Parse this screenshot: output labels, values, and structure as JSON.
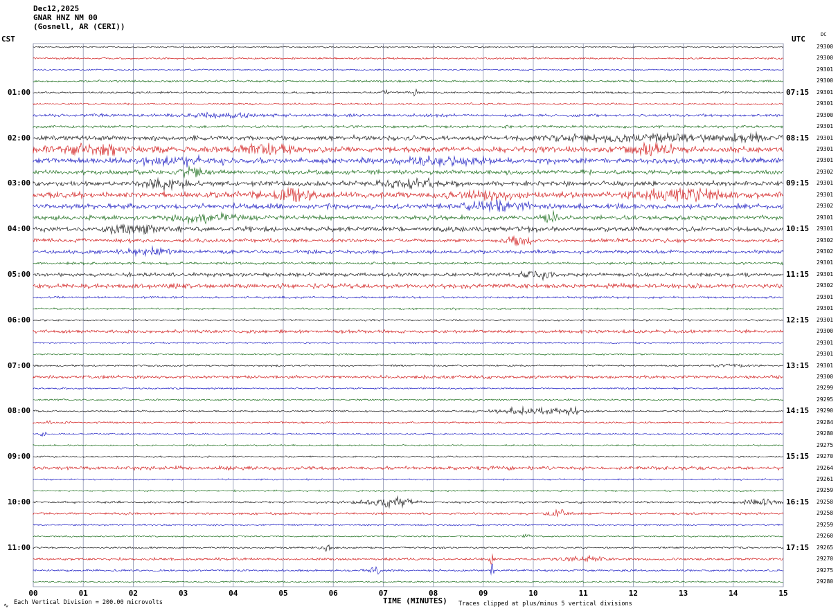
{
  "header": {
    "date": "Dec12,2025",
    "station": "GNAR HNZ NM 00",
    "location": "(Gosnell, AR (CERI))"
  },
  "axes": {
    "left_label": "CST",
    "right_label": "UTC",
    "dc_label": "DC",
    "x_label": "TIME (MINUTES)"
  },
  "footer": {
    "scale_note": "Each Vertical Division =  200.00 microvolts",
    "clip_note": "Traces clipped at plus/minus 5 vertical divisions",
    "corner_mark": "∿"
  },
  "colors": {
    "traces": [
      "#000000",
      "#cc0000",
      "#0000bb",
      "#005c00"
    ],
    "grid": "#8d93af",
    "background": "#ffffff"
  },
  "chart_data": {
    "type": "line",
    "title": "GNAR HNZ NM 00 (Gosnell, AR (CERI)) helicorder Dec12,2025",
    "xlabel": "TIME (MINUTES)",
    "x_ticks": [
      "00",
      "01",
      "02",
      "03",
      "04",
      "05",
      "06",
      "07",
      "08",
      "09",
      "10",
      "11",
      "12",
      "13",
      "14",
      "15"
    ],
    "x_range_minutes": [
      0,
      15
    ],
    "minutes_per_row": 15,
    "left_time_zone": "CST",
    "right_time_zone": "UTC",
    "trace_color_cycle": [
      "black",
      "red",
      "blue",
      "green"
    ],
    "rows": [
      {
        "cst": "",
        "utc": "",
        "dc": "29300",
        "c": 0,
        "a": 0.8,
        "ev": []
      },
      {
        "cst": "",
        "utc": "",
        "dc": "29300",
        "c": 1,
        "a": 1.0,
        "ev": []
      },
      {
        "cst": "",
        "utc": "",
        "dc": "29301",
        "c": 2,
        "a": 0.8,
        "ev": []
      },
      {
        "cst": "",
        "utc": "",
        "dc": "29300",
        "c": 3,
        "a": 1.2,
        "ev": []
      },
      {
        "cst": "01:00",
        "utc": "07:15",
        "dc": "29301",
        "c": 0,
        "a": 1.1,
        "ev": [
          {
            "p": 0.51,
            "m": 5,
            "w": 0.003
          },
          {
            "p": 0.47,
            "m": 2,
            "w": 0.004
          }
        ]
      },
      {
        "cst": "",
        "utc": "",
        "dc": "29301",
        "c": 1,
        "a": 1.0,
        "ev": []
      },
      {
        "cst": "",
        "utc": "",
        "dc": "29300",
        "c": 2,
        "a": 1.6,
        "ev": [
          {
            "p": 0.25,
            "m": 1.5,
            "w": 0.05
          }
        ]
      },
      {
        "cst": "",
        "utc": "",
        "dc": "29301",
        "c": 3,
        "a": 1.5,
        "ev": []
      },
      {
        "cst": "02:00",
        "utc": "08:15",
        "dc": "29301",
        "c": 0,
        "a": 2.6,
        "ev": [
          {
            "p": 0.8,
            "m": 1.2,
            "w": 0.1
          },
          {
            "p": 0.95,
            "m": 1.5,
            "w": 0.04
          }
        ]
      },
      {
        "cst": "",
        "utc": "",
        "dc": "29301",
        "c": 1,
        "a": 3.2,
        "ev": [
          {
            "p": 0.07,
            "m": 1.5,
            "w": 0.05
          },
          {
            "p": 0.3,
            "m": 1.2,
            "w": 0.04
          },
          {
            "p": 0.82,
            "m": 1.6,
            "w": 0.03
          }
        ]
      },
      {
        "cst": "",
        "utc": "",
        "dc": "29301",
        "c": 2,
        "a": 3.0,
        "ev": [
          {
            "p": 0.2,
            "m": 1.2,
            "w": 0.05
          },
          {
            "p": 0.55,
            "m": 1.3,
            "w": 0.05
          }
        ]
      },
      {
        "cst": "",
        "utc": "",
        "dc": "29302",
        "c": 3,
        "a": 2.4,
        "ev": [
          {
            "p": 0.21,
            "m": 1.8,
            "w": 0.02
          }
        ]
      },
      {
        "cst": "03:00",
        "utc": "09:15",
        "dc": "29301",
        "c": 0,
        "a": 2.6,
        "ev": [
          {
            "p": 0.5,
            "m": 1.6,
            "w": 0.04
          },
          {
            "p": 0.18,
            "m": 1.4,
            "w": 0.03
          }
        ]
      },
      {
        "cst": "",
        "utc": "",
        "dc": "29301",
        "c": 1,
        "a": 3.2,
        "ev": [
          {
            "p": 0.34,
            "m": 2,
            "w": 0.03
          },
          {
            "p": 0.86,
            "m": 1.8,
            "w": 0.05
          },
          {
            "p": 0.6,
            "m": 1.3,
            "w": 0.04
          }
        ]
      },
      {
        "cst": "",
        "utc": "",
        "dc": "29302",
        "c": 2,
        "a": 2.8,
        "ev": [
          {
            "p": 0.62,
            "m": 1.6,
            "w": 0.04
          }
        ]
      },
      {
        "cst": "",
        "utc": "",
        "dc": "29301",
        "c": 3,
        "a": 2.4,
        "ev": [
          {
            "p": 0.23,
            "m": 1.6,
            "w": 0.04
          },
          {
            "p": 0.69,
            "m": 2.2,
            "w": 0.01
          }
        ]
      },
      {
        "cst": "04:00",
        "utc": "10:15",
        "dc": "29301",
        "c": 0,
        "a": 2.6,
        "ev": [
          {
            "p": 0.13,
            "m": 1.6,
            "w": 0.03
          }
        ]
      },
      {
        "cst": "",
        "utc": "",
        "dc": "29302",
        "c": 1,
        "a": 2.0,
        "ev": [
          {
            "p": 0.65,
            "m": 2.2,
            "w": 0.015
          }
        ]
      },
      {
        "cst": "",
        "utc": "",
        "dc": "29302",
        "c": 2,
        "a": 2.0,
        "ev": [
          {
            "p": 0.15,
            "m": 1.6,
            "w": 0.03
          }
        ]
      },
      {
        "cst": "",
        "utc": "",
        "dc": "29301",
        "c": 3,
        "a": 1.4,
        "ev": []
      },
      {
        "cst": "05:00",
        "utc": "11:15",
        "dc": "29301",
        "c": 0,
        "a": 2.0,
        "ev": [
          {
            "p": 0.67,
            "m": 2,
            "w": 0.02
          }
        ]
      },
      {
        "cst": "",
        "utc": "",
        "dc": "29302",
        "c": 1,
        "a": 2.6,
        "ev": []
      },
      {
        "cst": "",
        "utc": "",
        "dc": "29301",
        "c": 2,
        "a": 1.2,
        "ev": []
      },
      {
        "cst": "",
        "utc": "",
        "dc": "29301",
        "c": 3,
        "a": 1.0,
        "ev": [
          {
            "p": 0.56,
            "m": 4,
            "w": 0.0025
          }
        ]
      },
      {
        "cst": "06:00",
        "utc": "12:15",
        "dc": "29301",
        "c": 0,
        "a": 1.0,
        "ev": []
      },
      {
        "cst": "",
        "utc": "",
        "dc": "29300",
        "c": 1,
        "a": 1.8,
        "ev": []
      },
      {
        "cst": "",
        "utc": "",
        "dc": "29301",
        "c": 2,
        "a": 0.9,
        "ev": []
      },
      {
        "cst": "",
        "utc": "",
        "dc": "29301",
        "c": 3,
        "a": 0.9,
        "ev": []
      },
      {
        "cst": "07:00",
        "utc": "13:15",
        "dc": "29301",
        "c": 0,
        "a": 1.0,
        "ev": [
          {
            "p": 0.93,
            "m": 2,
            "w": 0.02
          }
        ]
      },
      {
        "cst": "",
        "utc": "",
        "dc": "29300",
        "c": 1,
        "a": 1.8,
        "ev": []
      },
      {
        "cst": "",
        "utc": "",
        "dc": "29299",
        "c": 2,
        "a": 0.9,
        "ev": []
      },
      {
        "cst": "",
        "utc": "",
        "dc": "29295",
        "c": 3,
        "a": 0.9,
        "ev": []
      },
      {
        "cst": "08:00",
        "utc": "14:15",
        "dc": "29290",
        "c": 0,
        "a": 1.0,
        "ev": [
          {
            "p": 0.667,
            "m": 4,
            "w": 0.05
          },
          {
            "p": 0.72,
            "m": 5,
            "w": 0.006
          }
        ]
      },
      {
        "cst": "",
        "utc": "",
        "dc": "29284",
        "c": 1,
        "a": 1.0,
        "ev": [
          {
            "p": 0.02,
            "m": 3,
            "w": 0.004
          }
        ]
      },
      {
        "cst": "",
        "utc": "",
        "dc": "29280",
        "c": 2,
        "a": 0.9,
        "ev": [
          {
            "p": 0.012,
            "m": 3,
            "w": 0.004
          }
        ]
      },
      {
        "cst": "",
        "utc": "",
        "dc": "29275",
        "c": 3,
        "a": 0.9,
        "ev": []
      },
      {
        "cst": "09:00",
        "utc": "15:15",
        "dc": "29270",
        "c": 0,
        "a": 0.9,
        "ev": []
      },
      {
        "cst": "",
        "utc": "",
        "dc": "29264",
        "c": 1,
        "a": 2.0,
        "ev": []
      },
      {
        "cst": "",
        "utc": "",
        "dc": "29261",
        "c": 2,
        "a": 0.9,
        "ev": []
      },
      {
        "cst": "",
        "utc": "",
        "dc": "29259",
        "c": 3,
        "a": 0.9,
        "ev": []
      },
      {
        "cst": "10:00",
        "utc": "16:15",
        "dc": "29258",
        "c": 0,
        "a": 1.2,
        "ev": [
          {
            "p": 0.473,
            "m": 3.5,
            "w": 0.035
          },
          {
            "p": 0.97,
            "m": 3,
            "w": 0.025
          }
        ]
      },
      {
        "cst": "",
        "utc": "",
        "dc": "29258",
        "c": 1,
        "a": 1.2,
        "ev": [
          {
            "p": 0.7,
            "m": 4,
            "w": 0.015
          }
        ]
      },
      {
        "cst": "",
        "utc": "",
        "dc": "29259",
        "c": 2,
        "a": 0.9,
        "ev": []
      },
      {
        "cst": "",
        "utc": "",
        "dc": "29260",
        "c": 3,
        "a": 0.9,
        "ev": [
          {
            "p": 0.657,
            "m": 3,
            "w": 0.004
          }
        ]
      },
      {
        "cst": "11:00",
        "utc": "17:15",
        "dc": "29265",
        "c": 0,
        "a": 1.0,
        "ev": [
          {
            "p": 0.39,
            "m": 3.5,
            "w": 0.006
          }
        ]
      },
      {
        "cst": "",
        "utc": "",
        "dc": "29270",
        "c": 1,
        "a": 1.4,
        "ev": [
          {
            "p": 0.73,
            "m": 2,
            "w": 0.03
          },
          {
            "p": 0.611,
            "m": 6,
            "w": 0.0025
          }
        ]
      },
      {
        "cst": "",
        "utc": "",
        "dc": "29275",
        "c": 2,
        "a": 1.2,
        "ev": [
          {
            "p": 0.455,
            "m": 5,
            "w": 0.008
          },
          {
            "p": 0.611,
            "m": 7,
            "w": 0.003
          }
        ]
      },
      {
        "cst": "",
        "utc": "",
        "dc": "29280",
        "c": 3,
        "a": 0.9,
        "ev": []
      }
    ]
  }
}
